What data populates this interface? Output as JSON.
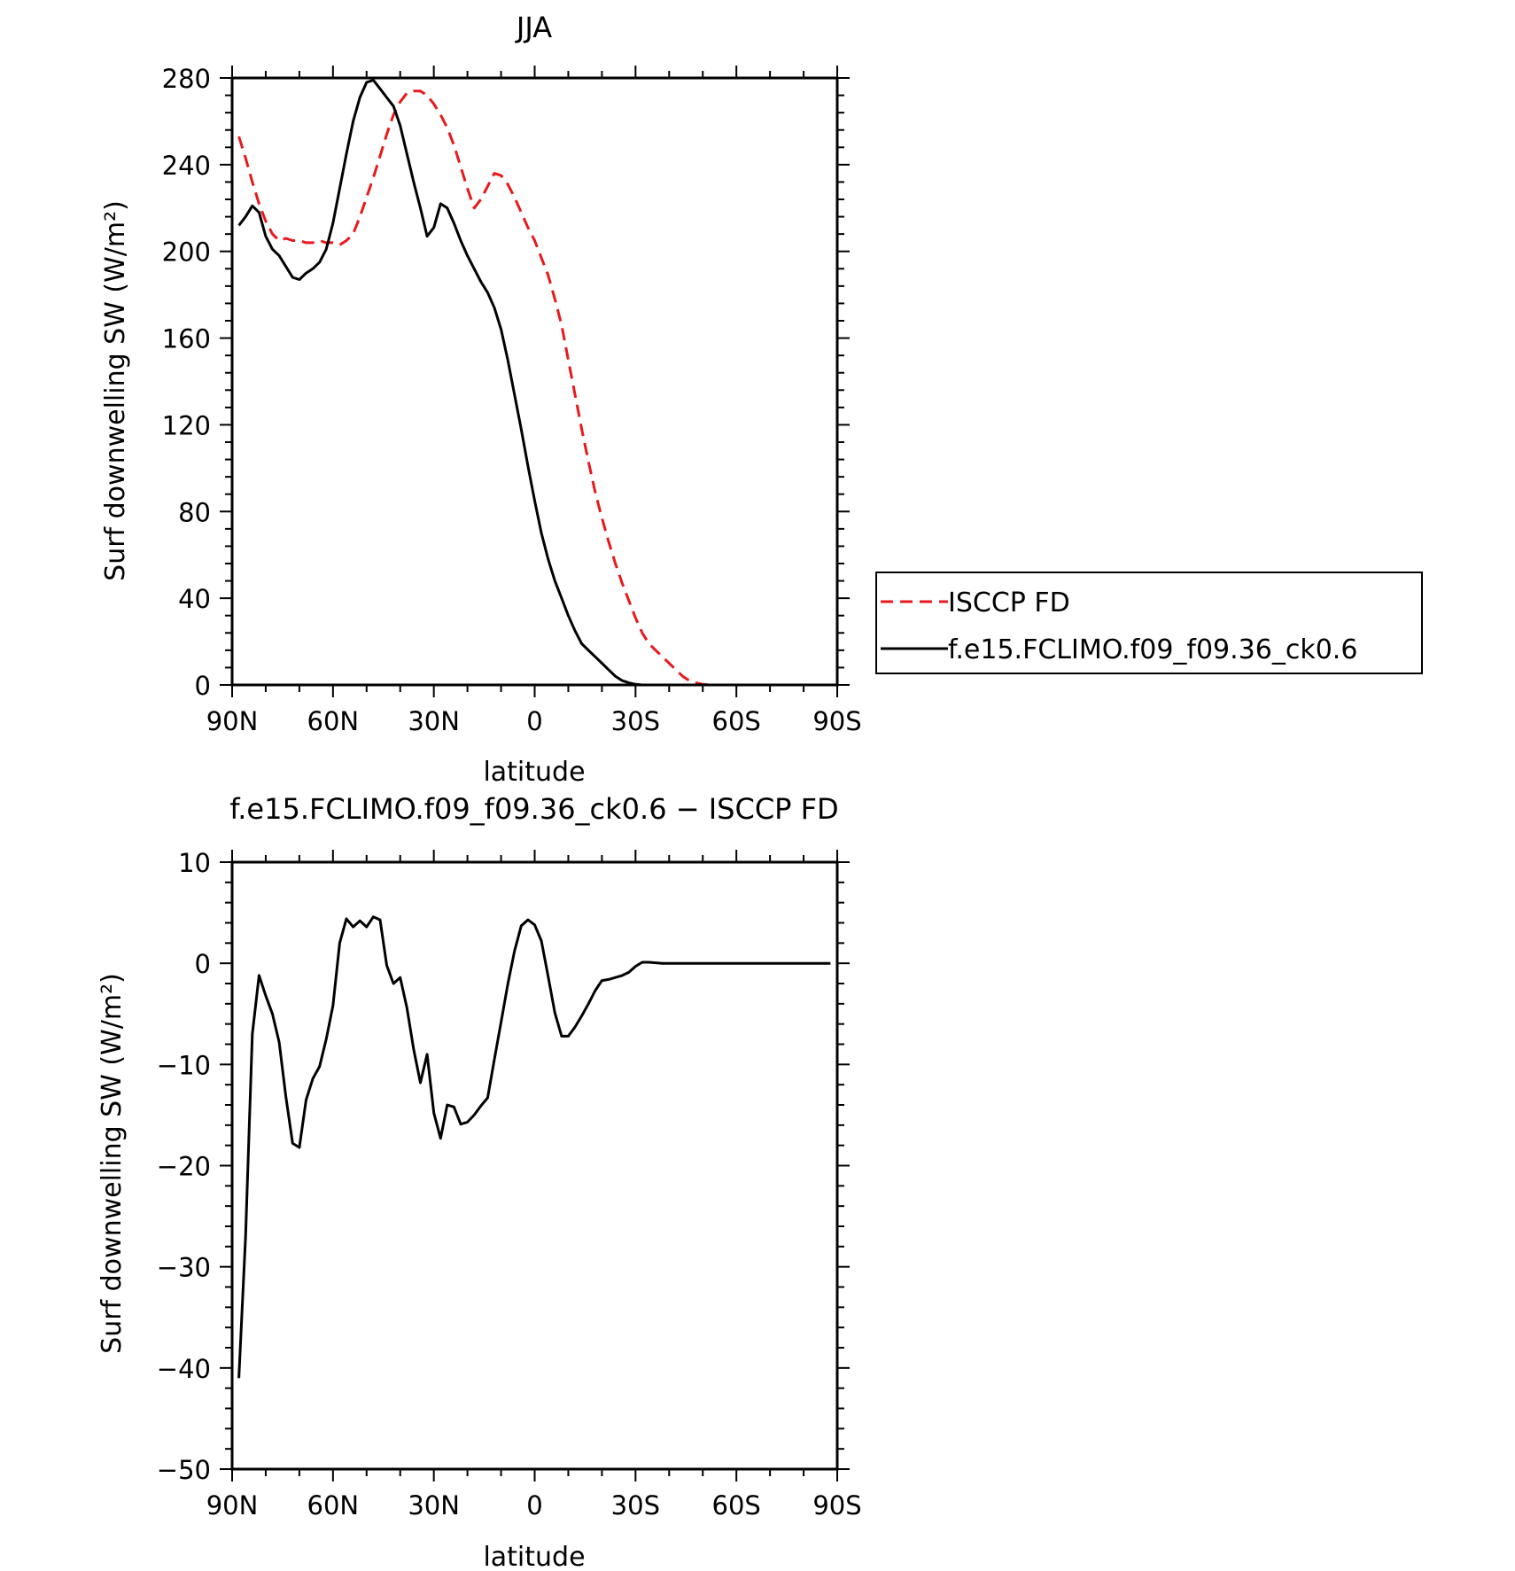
{
  "chart_data": [
    {
      "type": "line",
      "title": "JJA",
      "xlabel": "latitude",
      "ylabel": "Surf downwelling SW (W/m²)",
      "x_unit": "degrees latitude (north positive)",
      "xlim": [
        90,
        -90
      ],
      "ylim": [
        0,
        280
      ],
      "xticks": [
        90,
        60,
        30,
        0,
        -30,
        -60,
        -90
      ],
      "xtick_labels": [
        "90N",
        "60N",
        "30N",
        "0",
        "30S",
        "60S",
        "90S"
      ],
      "yticks": [
        0,
        40,
        80,
        120,
        160,
        200,
        240,
        280
      ],
      "ytick_labels": [
        "0",
        "40",
        "80",
        "120",
        "160",
        "200",
        "240",
        "280"
      ],
      "grid": false,
      "legend_position": "right",
      "series": [
        {
          "name": "ISCCP FD",
          "color": "#e8191c",
          "dash": "dashed",
          "x": [
            88,
            86,
            84,
            82,
            80,
            78,
            76,
            74,
            72,
            70,
            68,
            66,
            64,
            62,
            60,
            58,
            56,
            54,
            52,
            50,
            48,
            46,
            44,
            42,
            40,
            38,
            36,
            34,
            32,
            30,
            28,
            26,
            24,
            22,
            20,
            18,
            16,
            14,
            12,
            10,
            8,
            6,
            4,
            2,
            0,
            -2,
            -4,
            -6,
            -8,
            -10,
            -12,
            -14,
            -16,
            -18,
            -20,
            -22,
            -24,
            -26,
            -28,
            -30,
            -32,
            -34,
            -36,
            -38,
            -40,
            -42,
            -44,
            -46,
            -48,
            -50,
            -52,
            -54,
            -56,
            -58,
            -60,
            -62,
            -64,
            -66,
            -68,
            -70,
            -72,
            -74,
            -76,
            -78,
            -80,
            -82,
            -84,
            -86,
            -88
          ],
          "values": [
            253,
            243,
            232,
            222,
            214,
            208,
            205,
            206,
            205,
            205,
            204,
            204,
            205,
            204,
            204,
            203,
            205,
            208,
            216,
            225,
            234,
            244,
            254,
            263,
            269,
            273,
            274,
            274,
            272,
            268,
            263,
            257,
            249,
            239,
            229,
            220,
            224,
            230,
            236,
            235,
            231,
            225,
            218,
            211,
            205,
            197,
            189,
            178,
            166,
            150,
            134,
            118,
            103,
            89,
            77,
            66,
            56,
            47,
            39,
            31,
            24,
            19,
            16,
            13,
            10,
            7,
            4,
            2,
            1,
            0.3,
            0,
            0,
            0,
            0,
            0,
            0,
            0,
            0,
            0,
            0,
            0,
            0,
            0,
            0,
            0,
            0,
            0,
            0,
            0
          ]
        },
        {
          "name": "f.e15.FCLIMO.f09_f09.36_ck0.6",
          "color": "#000000",
          "dash": "solid",
          "x": [
            88,
            86,
            84,
            82,
            80,
            78,
            76,
            74,
            72,
            70,
            68,
            66,
            64,
            62,
            60,
            58,
            56,
            54,
            52,
            50,
            48,
            46,
            44,
            42,
            40,
            38,
            36,
            34,
            32,
            30,
            28,
            26,
            24,
            22,
            20,
            18,
            16,
            14,
            12,
            10,
            8,
            6,
            4,
            2,
            0,
            -2,
            -4,
            -6,
            -8,
            -10,
            -12,
            -14,
            -16,
            -18,
            -20,
            -22,
            -24,
            -26,
            -28,
            -30,
            -32,
            -34,
            -36,
            -38,
            -40,
            -42,
            -44,
            -46,
            -48,
            -50,
            -52,
            -54,
            -56,
            -58,
            -60,
            -62,
            -64,
            -66,
            -68,
            -70,
            -72,
            -74,
            -76,
            -78,
            -80,
            -82,
            -84,
            -86,
            -88
          ],
          "values": [
            212,
            216,
            221,
            218,
            207,
            201,
            198,
            193,
            188,
            187,
            190,
            192,
            195,
            201,
            213,
            229,
            245,
            260,
            271,
            278,
            279,
            275,
            271,
            267,
            258,
            245,
            232,
            220,
            207,
            211,
            222,
            220,
            213,
            205,
            198,
            192,
            186,
            181,
            174,
            164,
            150,
            134,
            118,
            101,
            85,
            70,
            58,
            48,
            40,
            32,
            25,
            19,
            16,
            13,
            10,
            7,
            4,
            2,
            1,
            0.3,
            0,
            0,
            0,
            0,
            0,
            0,
            0,
            0,
            0,
            0,
            0,
            0,
            0,
            0,
            0,
            0,
            0,
            0,
            0,
            0,
            0,
            0,
            0,
            0,
            0,
            0,
            0,
            0,
            0
          ]
        }
      ]
    },
    {
      "type": "line",
      "title": "f.e15.FCLIMO.f09_f09.36_ck0.6 − ISCCP FD",
      "xlabel": "latitude",
      "ylabel": "Surf downwelling SW (W/m²)",
      "x_unit": "degrees latitude (north positive)",
      "xlim": [
        90,
        -90
      ],
      "ylim": [
        -50,
        10
      ],
      "xticks": [
        90,
        60,
        30,
        0,
        -30,
        -60,
        -90
      ],
      "xtick_labels": [
        "90N",
        "60N",
        "30N",
        "0",
        "30S",
        "60S",
        "90S"
      ],
      "yticks": [
        -50,
        -40,
        -30,
        -20,
        -10,
        0,
        10
      ],
      "ytick_labels": [
        "−50",
        "−40",
        "−30",
        "−20",
        "−10",
        "0",
        "10"
      ],
      "grid": false,
      "series": [
        {
          "color": "#000000",
          "dash": "solid",
          "x": [
            88,
            86,
            84,
            82,
            80,
            78,
            76,
            74,
            72,
            70,
            68,
            66,
            64,
            62,
            60,
            58,
            56,
            54,
            52,
            50,
            48,
            46,
            44,
            42,
            40,
            38,
            36,
            34,
            32,
            30,
            28,
            26,
            24,
            22,
            20,
            18,
            16,
            14,
            12,
            10,
            8,
            6,
            4,
            2,
            0,
            -2,
            -4,
            -6,
            -8,
            -10,
            -12,
            -14,
            -16,
            -18,
            -20,
            -22,
            -24,
            -26,
            -28,
            -30,
            -32,
            -34,
            -36,
            -38,
            -40,
            -42,
            -44,
            -46,
            -48,
            -50,
            -52,
            -54,
            -56,
            -58,
            -60,
            -62,
            -64,
            -66,
            -68,
            -70,
            -72,
            -74,
            -76,
            -78,
            -80,
            -82,
            -84,
            -86,
            -88
          ],
          "values": [
            -41,
            -27,
            -7,
            -1.2,
            -3.2,
            -5,
            -7.8,
            -13.2,
            -17.8,
            -18.2,
            -13.5,
            -11.4,
            -10.2,
            -7.5,
            -4.2,
            2,
            4.4,
            3.6,
            4.2,
            3.6,
            4.6,
            4.3,
            -0.2,
            -2,
            -1.4,
            -4.4,
            -8.5,
            -11.8,
            -9,
            -14.8,
            -17.3,
            -14,
            -14.2,
            -15.9,
            -15.7,
            -15,
            -14.1,
            -13.3,
            -9.5,
            -5.8,
            -2.1,
            1.2,
            3.7,
            4.3,
            3.8,
            2.2,
            -1.3,
            -4.9,
            -7.2,
            -7.2,
            -6.3,
            -5.2,
            -4,
            -2.7,
            -1.7,
            -1.6,
            -1.4,
            -1.2,
            -0.9,
            -0.3,
            0.1,
            0.1,
            0.05,
            0,
            0,
            0,
            0,
            0,
            0,
            0,
            0,
            0,
            0,
            0,
            0,
            0,
            0,
            0,
            0,
            0,
            0,
            0,
            0,
            0,
            0,
            0,
            0,
            0,
            0
          ]
        }
      ]
    }
  ]
}
